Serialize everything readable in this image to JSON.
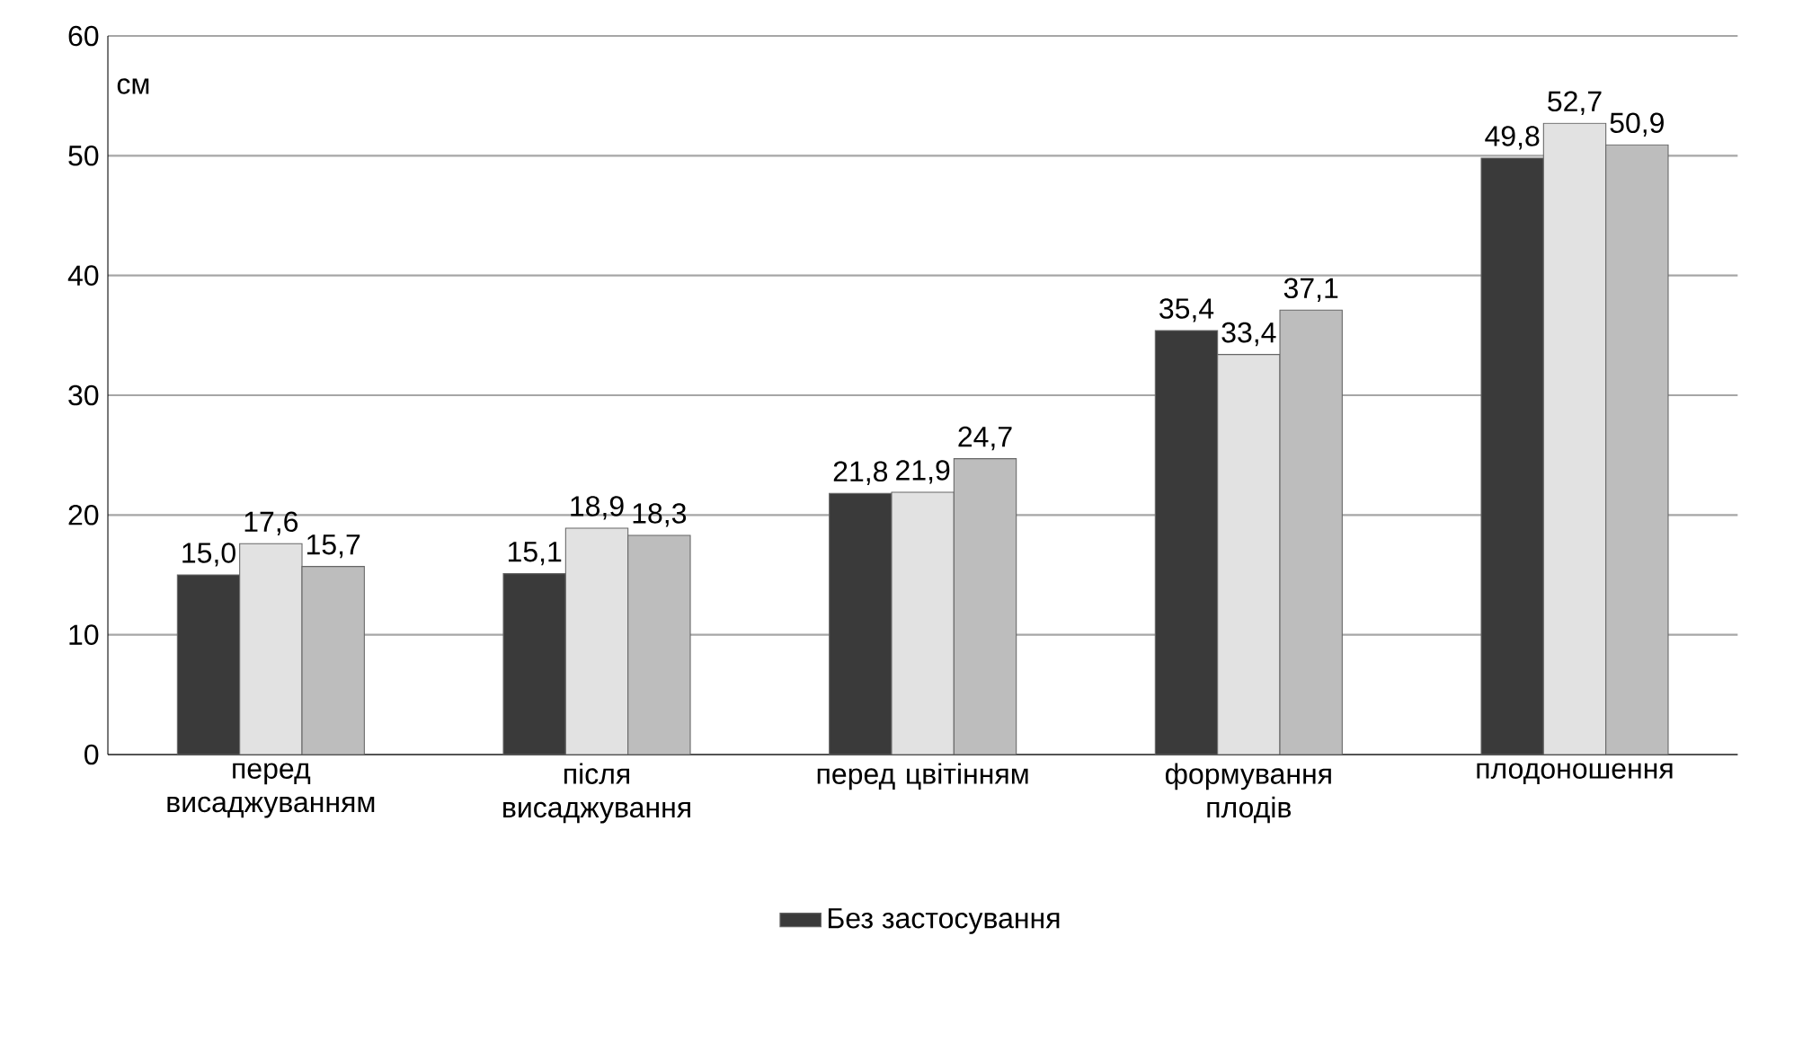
{
  "chart_data": {
    "type": "bar",
    "ylabel": "см",
    "categories": [
      "перед висаджуванням",
      "після висаджування",
      "перед цвітінням",
      "формування плодів",
      "плодоношення"
    ],
    "series": [
      {
        "name": "Без застосування",
        "color": "#3a3a3a",
        "values": [
          15.0,
          15.1,
          21.8,
          35.4,
          49.8
        ],
        "value_labels": [
          "15,0",
          "15,1",
          "21,8",
          "35,4",
          "49,8"
        ]
      },
      {
        "color": "#e2e2e2",
        "values": [
          17.6,
          18.9,
          21.9,
          33.4,
          52.7
        ],
        "value_labels": [
          "17,6",
          "18,9",
          "21,9",
          "33,4",
          "52,7"
        ]
      },
      {
        "color": "#bdbdbd",
        "values": [
          15.7,
          18.3,
          24.7,
          37.1,
          50.9
        ],
        "value_labels": [
          "15,7",
          "18,3",
          "24,7",
          "37,1",
          "50,9"
        ]
      }
    ],
    "ylim": [
      0,
      60
    ],
    "yticks": [
      0,
      10,
      20,
      30,
      40,
      50,
      60
    ],
    "grid": "y",
    "legend": "bottom"
  }
}
